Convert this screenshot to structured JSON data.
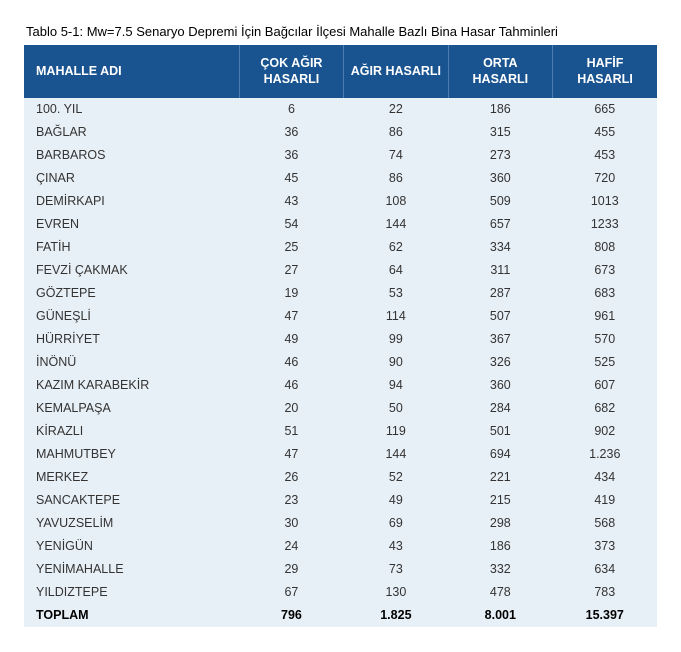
{
  "table": {
    "type": "table",
    "caption": "Tablo 5-1: Mw=7.5 Senaryo Depremi İçin Bağcılar İlçesi Mahalle Bazlı Bina Hasar Tahminleri",
    "columns": [
      {
        "key": "name",
        "label": "MAHALLE ADI"
      },
      {
        "key": "v1",
        "label": "ÇOK AĞIR HASARLI"
      },
      {
        "key": "v2",
        "label": "AĞIR HASARLI"
      },
      {
        "key": "v3",
        "label": "ORTA HASARLI"
      },
      {
        "key": "v4",
        "label": "HAFİF HASARLI"
      }
    ],
    "rows": [
      {
        "name": "100. YIL",
        "v1": "6",
        "v2": "22",
        "v3": "186",
        "v4": "665"
      },
      {
        "name": "BAĞLAR",
        "v1": "36",
        "v2": "86",
        "v3": "315",
        "v4": "455"
      },
      {
        "name": "BARBAROS",
        "v1": "36",
        "v2": "74",
        "v3": "273",
        "v4": "453"
      },
      {
        "name": "ÇINAR",
        "v1": "45",
        "v2": "86",
        "v3": "360",
        "v4": "720"
      },
      {
        "name": "DEMİRKAPI",
        "v1": "43",
        "v2": "108",
        "v3": "509",
        "v4": "1013"
      },
      {
        "name": "EVREN",
        "v1": "54",
        "v2": "144",
        "v3": "657",
        "v4": "1233"
      },
      {
        "name": "FATİH",
        "v1": "25",
        "v2": "62",
        "v3": "334",
        "v4": "808"
      },
      {
        "name": "FEVZİ ÇAKMAK",
        "v1": "27",
        "v2": "64",
        "v3": "311",
        "v4": "673"
      },
      {
        "name": "GÖZTEPE",
        "v1": "19",
        "v2": "53",
        "v3": "287",
        "v4": "683"
      },
      {
        "name": "GÜNEŞLİ",
        "v1": "47",
        "v2": "114",
        "v3": "507",
        "v4": "961"
      },
      {
        "name": "HÜRRİYET",
        "v1": "49",
        "v2": "99",
        "v3": "367",
        "v4": "570"
      },
      {
        "name": "İNÖNÜ",
        "v1": "46",
        "v2": "90",
        "v3": "326",
        "v4": "525"
      },
      {
        "name": "KAZIM KARABEKİR",
        "v1": "46",
        "v2": "94",
        "v3": "360",
        "v4": "607"
      },
      {
        "name": "KEMALPAŞA",
        "v1": "20",
        "v2": "50",
        "v3": "284",
        "v4": "682"
      },
      {
        "name": "KİRAZLI",
        "v1": "51",
        "v2": "119",
        "v3": "501",
        "v4": "902"
      },
      {
        "name": "MAHMUTBEY",
        "v1": "47",
        "v2": "144",
        "v3": "694",
        "v4": "1.236"
      },
      {
        "name": "MERKEZ",
        "v1": "26",
        "v2": "52",
        "v3": "221",
        "v4": "434"
      },
      {
        "name": "SANCAKTEPE",
        "v1": "23",
        "v2": "49",
        "v3": "215",
        "v4": "419"
      },
      {
        "name": "YAVUZSELİM",
        "v1": "30",
        "v2": "69",
        "v3": "298",
        "v4": "568"
      },
      {
        "name": "YENİGÜN",
        "v1": "24",
        "v2": "43",
        "v3": "186",
        "v4": "373"
      },
      {
        "name": "YENİMAHALLE",
        "v1": "29",
        "v2": "73",
        "v3": "332",
        "v4": "634"
      },
      {
        "name": "YILDIZTEPE",
        "v1": "67",
        "v2": "130",
        "v3": "478",
        "v4": "783"
      }
    ],
    "total": {
      "name": "TOPLAM",
      "v1": "796",
      "v2": "1.825",
      "v3": "8.001",
      "v4": "15.397"
    },
    "style": {
      "header_bg": "#1a5490",
      "header_fg": "#ffffff",
      "row_bg": "#e8f0f7",
      "text_color": "#333333",
      "caption_color": "#000000",
      "font_size_body": 12.5,
      "font_size_caption": 13,
      "col_widths_pct": [
        34,
        16.5,
        16.5,
        16.5,
        16.5
      ]
    }
  }
}
